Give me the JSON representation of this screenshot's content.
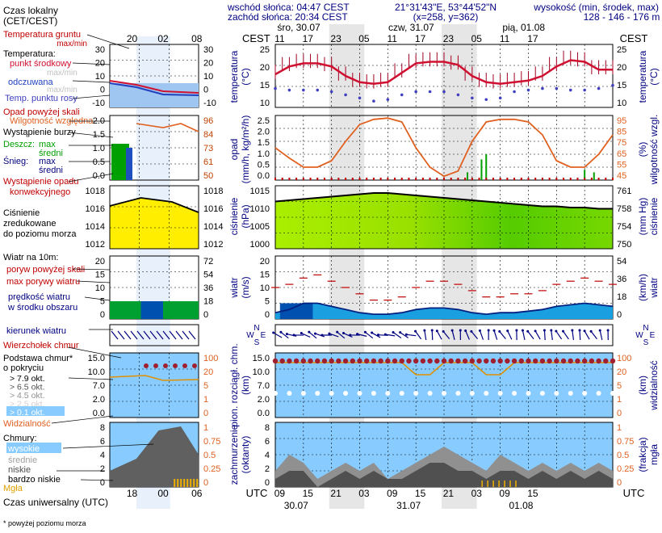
{
  "header": {
    "sunrise": "wschód słońca: 04:47 CEST",
    "sunset": "zachód słońca: 20:34 CEST",
    "coords": "21°31'43\"E, 53°44'52\"N",
    "grid": "(x=258, y=362)",
    "elevation_title": "wysokość (min, środek, max)",
    "elevation_values": "128 - 146 - 176 m"
  },
  "time_axis": {
    "top_label": "CEST",
    "bottom_label": "UTC",
    "top_days": [
      "śro, 30.07",
      "czw, 31.07",
      "pią, 01.08"
    ],
    "top_hours": [
      "11",
      "17",
      "23",
      "05",
      "11",
      "17",
      "23",
      "05",
      "11",
      "17"
    ],
    "bottom_hours": [
      "09",
      "15",
      "21",
      "03",
      "09",
      "15",
      "21",
      "03",
      "09",
      "15"
    ],
    "bottom_dates": [
      "30.07",
      "31.07",
      "01.08"
    ]
  },
  "legend": {
    "local_time": "Czas lokalny",
    "local_time_sub": "(CET/CEST)",
    "legend_hours_top": [
      "20",
      "02",
      "08"
    ],
    "legend_hours_bottom": [
      "18",
      "00",
      "06"
    ],
    "utc_time": "Czas uniwersalny (UTC)",
    "footnote": "* powyżej poziomu morza",
    "temp_ground": "Temperatura gruntu",
    "temp_ground_sub": "max/min",
    "temperature": "Temperatura:",
    "temp_mid": "punkt środkowy",
    "temp_maxmin_1": "max/min",
    "felt": "odczuwana",
    "temp_maxmin_2": "max/min",
    "dew": "Temp. punktu rosy",
    "precip_above": "Opad powyżej skali",
    "humidity": "Wilgotność względna",
    "storm": "Wystąpienie burzy",
    "rain": "Deszcz:",
    "rain_max": "max",
    "rain_mid": "średni",
    "snow": "Śnieg:",
    "snow_max": "max",
    "snow_mid": "średni",
    "conv": "Wystąpienie opadu",
    "conv2": "konwekcyjnego",
    "pressure1": "Ciśnienie",
    "pressure2": "zredukowane",
    "pressure3": "do poziomu morza",
    "wind": "Wiatr na 10m:",
    "gust_above": "poryw powyżej skali",
    "gust_max": "max porywy wiatru",
    "wind_speed": "prędkość wiatru",
    "wind_area": "w środku obszaru",
    "wind_dir": "kierunek wiatru",
    "wind_chill": "Wierzchołek chmur",
    "cloud_base1": "Podstawa chmur*",
    "cloud_base2": "o pokryciu",
    "okt": [
      "> 7.9 okt.",
      "> 6.5 okt.",
      "> 4.5 okt.",
      "> 2.5 okt.",
      "> 0.1 okt."
    ],
    "visibility": "Widzialność",
    "clouds": "Chmury:",
    "cl_high": "wysokie",
    "cl_mid": "średnie",
    "cl_low": "niskie",
    "cl_vlow": "bardzo niskie",
    "fog": "Mgła"
  },
  "axes": {
    "temp_left": "temperatura",
    "temp_left_unit": "(°C)",
    "temp_right": "temperatura",
    "temp_right_unit": "(°C)",
    "precip_left": "opad",
    "precip_left_unit": "(mm/h, kg/m²/h)",
    "humid_right": "wilgotność wzgl.",
    "humid_right_unit": "(%)",
    "press_left": "ciśnienie",
    "press_left_unit": "(hPa)",
    "press_right": "ciśnienie",
    "press_right_unit": "(mm Hg)",
    "wind_left": "wiatr",
    "wind_left_unit": "(m/s)",
    "wind_right": "wiatr",
    "wind_right_unit": "(km/h)",
    "cloud_left": "pion. rozciągł. chm.",
    "cloud_left_unit": "(km)",
    "vis_right": "widzialność",
    "vis_right_unit": "(km)",
    "cover_left": "zachmurzenie",
    "cover_left_unit": "(oktanty)",
    "fog_right": "mgła",
    "fog_right_unit": "(frakcja)",
    "dir_N": "N",
    "dir_S": "S",
    "dir_W": "W",
    "dir_E": "E"
  },
  "ticks": {
    "temp_left": [
      "25",
      "20",
      "15",
      "10"
    ],
    "temp_right": [
      "25",
      "20",
      "15",
      "10"
    ],
    "legend_temp_left": [
      "30",
      "20",
      "10",
      "0",
      "-10"
    ],
    "legend_temp_right": [
      "30",
      "20",
      "10",
      "0",
      "-10"
    ],
    "precip_left": [
      "2.5",
      "2.0",
      "1.5",
      "1.0",
      "0.5",
      "0.0"
    ],
    "humid_right": [
      "95",
      "85",
      "75",
      "65",
      "55",
      "45"
    ],
    "legend_precip_left": [
      "2.0",
      "1.5",
      "1.0",
      "0.5",
      "0.0"
    ],
    "legend_humid_right": [
      "96",
      "84",
      "73",
      "61",
      "50"
    ],
    "press_left": [
      "1015",
      "1010",
      "1005",
      "1000"
    ],
    "press_right": [
      "761",
      "758",
      "754",
      "750"
    ],
    "legend_press_left": [
      "1018",
      "1016",
      "1014",
      "1012"
    ],
    "legend_press_right": [
      "1018",
      "1016",
      "1014",
      "1012"
    ],
    "wind_left": [
      "20",
      "15",
      "10",
      "5",
      "0"
    ],
    "wind_right": [
      "54",
      "36",
      "18",
      "0"
    ],
    "legend_wind_left": [
      "20",
      "15",
      "10",
      "5",
      "0"
    ],
    "legend_wind_right": [
      "72",
      "54",
      "36",
      "18",
      "0"
    ],
    "cloud_left": [
      "15.0",
      "10.0",
      "7.0",
      "2.0",
      "0.0"
    ],
    "vis_right": [
      "100",
      "20",
      "5",
      "1",
      "0"
    ],
    "cover_left": [
      "8",
      "6",
      "4",
      "2",
      "0"
    ],
    "fog_right": [
      "1",
      "0.75",
      "0.5",
      "0.25",
      "0"
    ]
  },
  "chart_data": {
    "type": "line",
    "x_hours_from_start": [
      0,
      3,
      6,
      9,
      12,
      15,
      18,
      21,
      24,
      27,
      30,
      33,
      36,
      39,
      42,
      45,
      48,
      51,
      54,
      57,
      60,
      63,
      66,
      69,
      72
    ],
    "temperature": [
      17.5,
      20,
      21,
      21,
      20,
      17,
      15,
      14.5,
      15,
      18,
      21,
      21.5,
      21.5,
      20.5,
      17,
      15,
      14.5,
      15,
      15.5,
      17,
      20,
      22,
      21.5,
      19,
      19
    ],
    "dew_point": [
      13,
      12.5,
      12.5,
      12.5,
      12,
      11,
      10,
      9,
      9.5,
      11,
      12,
      12,
      12,
      11,
      10,
      9.5,
      10,
      12,
      12.5,
      13,
      13,
      12.5,
      12.5,
      13,
      14
    ],
    "humidity": [
      70,
      62,
      55,
      55,
      60,
      75,
      88,
      92,
      93,
      90,
      70,
      55,
      48,
      52,
      75,
      90,
      92,
      92,
      90,
      80,
      60,
      55,
      55,
      65,
      80
    ],
    "pressure": [
      1011.5,
      1012,
      1012.5,
      1013,
      1013.5,
      1014,
      1014.5,
      1015,
      1015,
      1014.5,
      1014,
      1013.5,
      1013,
      1012.5,
      1012,
      1011.5,
      1011,
      1010.5,
      1010,
      1009.5,
      1009.5,
      1009,
      1009,
      1008.5,
      1008.5
    ],
    "wind_speed": [
      2,
      3,
      5,
      5,
      4,
      3,
      2,
      1.5,
      1.5,
      2,
      3,
      3.5,
      3.5,
      3,
      2,
      1.5,
      2,
      2,
      2.5,
      3,
      4,
      4.5,
      5,
      4.5,
      4
    ],
    "wind_gust": [
      10,
      11,
      13,
      14,
      12,
      10,
      8,
      6,
      6,
      7,
      10,
      12,
      12,
      11,
      9,
      7,
      7,
      8,
      8,
      9,
      11,
      12,
      13,
      12,
      11
    ],
    "visibility": [
      20,
      20,
      20,
      20,
      20,
      20,
      20,
      20,
      20,
      20,
      5,
      5,
      20,
      20,
      20,
      2,
      5,
      20,
      20,
      20,
      20,
      20,
      20,
      20,
      20
    ],
    "precip_events": [
      {
        "x": 41,
        "value": 0.3
      },
      {
        "x": 44,
        "value": 0.8
      },
      {
        "x": 45,
        "value": 1.0
      },
      {
        "x": 66,
        "value": 0.4
      },
      {
        "x": 68,
        "value": 0.3
      }
    ]
  }
}
